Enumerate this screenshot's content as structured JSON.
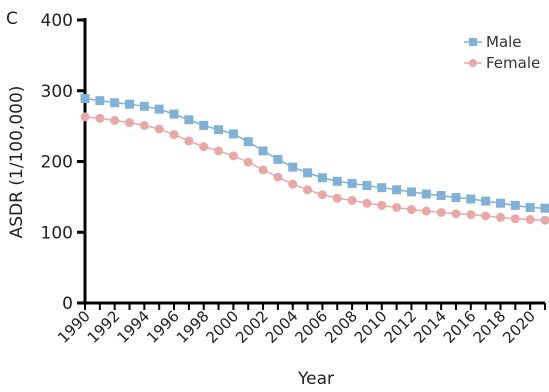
{
  "panel_label": "C",
  "chart_data": {
    "type": "line",
    "xlabel": "Year",
    "ylabel": "ASDR (1/100,000)",
    "xlim": [
      1990,
      2021
    ],
    "ylim": [
      0,
      400
    ],
    "yticks": [
      0,
      100,
      200,
      300,
      400
    ],
    "xticks": [
      1990,
      1992,
      1994,
      1996,
      1998,
      2000,
      2002,
      2004,
      2006,
      2008,
      2010,
      2012,
      2014,
      2016,
      2018,
      2020
    ],
    "legend_position": "top-right",
    "x": [
      1990,
      1991,
      1992,
      1993,
      1994,
      1995,
      1996,
      1997,
      1998,
      1999,
      2000,
      2001,
      2002,
      2003,
      2004,
      2005,
      2006,
      2007,
      2008,
      2009,
      2010,
      2011,
      2012,
      2013,
      2014,
      2015,
      2016,
      2017,
      2018,
      2019,
      2020,
      2021
    ],
    "series": [
      {
        "name": "Male",
        "color": "#7fb2d6",
        "marker": "square",
        "values": [
          289,
          286,
          283,
          281,
          278,
          274,
          267,
          259,
          251,
          245,
          239,
          228,
          215,
          203,
          192,
          184,
          177,
          172,
          169,
          166,
          163,
          160,
          157,
          154,
          152,
          149,
          147,
          144,
          141,
          138,
          135,
          134
        ]
      },
      {
        "name": "Female",
        "color": "#e8a8a8",
        "marker": "circle",
        "values": [
          263,
          261,
          258,
          255,
          251,
          246,
          238,
          229,
          221,
          215,
          208,
          199,
          188,
          178,
          168,
          160,
          153,
          148,
          145,
          141,
          138,
          135,
          132,
          130,
          128,
          126,
          125,
          123,
          121,
          119,
          118,
          117
        ]
      }
    ]
  }
}
